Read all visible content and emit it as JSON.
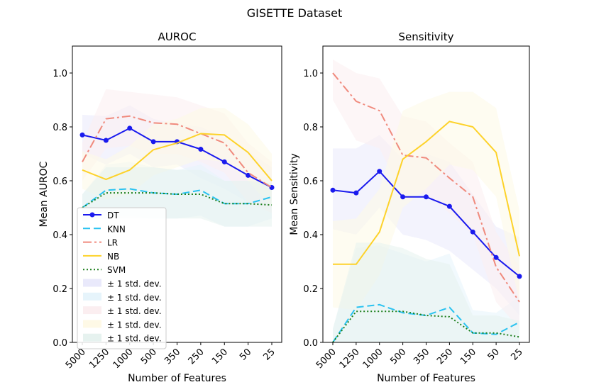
{
  "chart_data": {
    "suptitle": "GISETTE Dataset",
    "type": "line",
    "x_categories": [
      "5000",
      "1250",
      "1000",
      "500",
      "350",
      "250",
      "150",
      "50",
      "25"
    ],
    "y_ticks": [
      "0.0",
      "0.2",
      "0.4",
      "0.6",
      "0.8",
      "1.0"
    ],
    "band_label": "± 1 std. dev.",
    "series_styles": [
      {
        "name": "DT",
        "color": "#1a1aee",
        "dash": "",
        "marker": true,
        "band_color": "#e9e9fb"
      },
      {
        "name": "KNN",
        "color": "#29c2f0",
        "dash": "10,5",
        "marker": false,
        "band_color": "#e6f4fb"
      },
      {
        "name": "LR",
        "color": "#f08a7d",
        "dash": "12,4,3,4",
        "marker": false,
        "band_color": "#fbeef0"
      },
      {
        "name": "NB",
        "color": "#fdd22a",
        "dash": "",
        "marker": false,
        "band_color": "#fef9e6"
      },
      {
        "name": "SVM",
        "color": "#1c7f1c",
        "dash": "2,3",
        "marker": false,
        "band_color": "#e6f2ef"
      }
    ],
    "panels": [
      {
        "title": "AUROC",
        "xlabel": "Number of Features",
        "ylabel": "Mean AUROC",
        "ylim": [
          0,
          1.1
        ],
        "series": [
          {
            "name": "DT",
            "values": [
              0.77,
              0.75,
              0.795,
              0.745,
              0.745,
              0.717,
              0.67,
              0.62,
              0.575
            ],
            "lower": [
              0.7,
              0.66,
              0.7,
              0.65,
              0.66,
              0.61,
              0.57,
              0.52,
              0.5
            ],
            "upper": [
              0.845,
              0.84,
              0.88,
              0.83,
              0.81,
              0.8,
              0.76,
              0.71,
              0.65
            ]
          },
          {
            "name": "KNN",
            "values": [
              0.5,
              0.565,
              0.57,
              0.555,
              0.55,
              0.565,
              0.515,
              0.515,
              0.54
            ],
            "lower": [
              0.45,
              0.47,
              0.47,
              0.46,
              0.46,
              0.47,
              0.43,
              0.43,
              0.46
            ],
            "upper": [
              0.55,
              0.66,
              0.67,
              0.65,
              0.64,
              0.66,
              0.6,
              0.6,
              0.62
            ]
          },
          {
            "name": "LR",
            "values": [
              0.67,
              0.83,
              0.84,
              0.815,
              0.81,
              0.775,
              0.74,
              0.63,
              0.575
            ],
            "lower": [
              0.6,
              0.72,
              0.73,
              0.7,
              0.7,
              0.67,
              0.63,
              0.52,
              0.48
            ],
            "upper": [
              0.74,
              0.94,
              0.93,
              0.92,
              0.91,
              0.88,
              0.85,
              0.74,
              0.67
            ]
          },
          {
            "name": "NB",
            "values": [
              0.64,
              0.605,
              0.64,
              0.715,
              0.74,
              0.775,
              0.77,
              0.705,
              0.6
            ],
            "lower": [
              0.57,
              0.53,
              0.55,
              0.62,
              0.65,
              0.68,
              0.67,
              0.6,
              0.5
            ],
            "upper": [
              0.71,
              0.68,
              0.73,
              0.81,
              0.83,
              0.87,
              0.87,
              0.81,
              0.7
            ]
          },
          {
            "name": "SVM",
            "values": [
              0.5,
              0.555,
              0.555,
              0.555,
              0.55,
              0.55,
              0.515,
              0.515,
              0.51
            ],
            "lower": [
              0.45,
              0.46,
              0.46,
              0.46,
              0.46,
              0.46,
              0.43,
              0.43,
              0.43
            ],
            "upper": [
              0.55,
              0.65,
              0.65,
              0.65,
              0.64,
              0.64,
              0.6,
              0.6,
              0.59
            ]
          }
        ],
        "legend": {
          "entries": [
            "DT",
            "KNN",
            "LR",
            "NB",
            "SVM"
          ],
          "placement": "lower-left"
        }
      },
      {
        "title": "Sensitivity",
        "xlabel": "Number of Features",
        "ylabel": "Mean Sensitivity",
        "ylim": [
          0,
          1.1
        ],
        "series": [
          {
            "name": "DT",
            "values": [
              0.565,
              0.555,
              0.635,
              0.54,
              0.54,
              0.505,
              0.41,
              0.315,
              0.245
            ],
            "lower": [
              0.42,
              0.4,
              0.5,
              0.4,
              0.38,
              0.34,
              0.27,
              0.2,
              0.1
            ],
            "upper": [
              0.72,
              0.72,
              0.77,
              0.68,
              0.7,
              0.67,
              0.55,
              0.43,
              0.39
            ]
          },
          {
            "name": "KNN",
            "values": [
              0.0,
              0.13,
              0.14,
              0.11,
              0.1,
              0.13,
              0.035,
              0.03,
              0.075
            ],
            "lower": [
              0.0,
              0.0,
              0.0,
              0.0,
              0.0,
              0.0,
              0.0,
              0.0,
              0.0
            ],
            "upper": [
              0.05,
              0.35,
              0.36,
              0.33,
              0.3,
              0.33,
              0.12,
              0.11,
              0.17
            ]
          },
          {
            "name": "LR",
            "values": [
              1.0,
              0.895,
              0.86,
              0.695,
              0.685,
              0.61,
              0.54,
              0.28,
              0.15
            ],
            "lower": [
              0.9,
              0.75,
              0.72,
              0.55,
              0.55,
              0.48,
              0.4,
              0.15,
              0.05
            ],
            "upper": [
              1.05,
              1.0,
              0.98,
              0.84,
              0.82,
              0.74,
              0.67,
              0.41,
              0.28
            ]
          },
          {
            "name": "NB",
            "values": [
              0.29,
              0.29,
              0.41,
              0.68,
              0.745,
              0.82,
              0.8,
              0.705,
              0.32
            ],
            "lower": [
              0.13,
              0.12,
              0.25,
              0.5,
              0.57,
              0.66,
              0.64,
              0.54,
              0.15
            ],
            "upper": [
              0.45,
              0.46,
              0.57,
              0.86,
              0.9,
              0.93,
              0.93,
              0.87,
              0.49
            ]
          },
          {
            "name": "SVM",
            "values": [
              0.0,
              0.115,
              0.115,
              0.115,
              0.1,
              0.095,
              0.035,
              0.035,
              0.02
            ],
            "lower": [
              0.0,
              0.0,
              0.0,
              0.0,
              0.0,
              0.0,
              0.0,
              0.0,
              0.0
            ],
            "upper": [
              0.05,
              0.37,
              0.37,
              0.35,
              0.31,
              0.29,
              0.1,
              0.1,
              0.08
            ]
          }
        ]
      }
    ]
  }
}
